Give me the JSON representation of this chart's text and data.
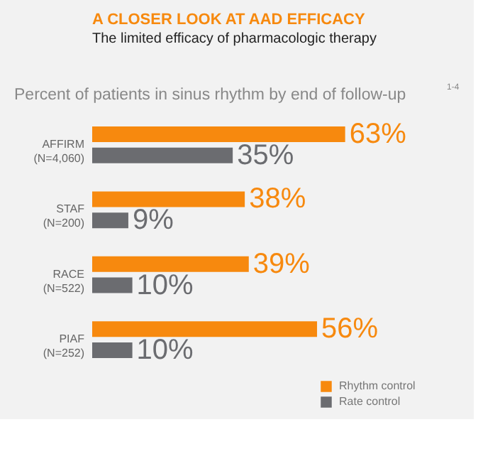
{
  "chart_data": {
    "type": "bar",
    "orientation": "horizontal",
    "title": "A CLOSER LOOK AT AAD EFFICACY",
    "subtitle": "The limited efficacy of pharmacologic therapy",
    "annotations": [
      "Percent of patients in sinus rhythm by end of follow-up",
      "1-4"
    ],
    "categories": [
      "AFFIRM\n(N=4,060)",
      "STAF\n(N=200)",
      "RACE\n(N=522)",
      "PIAF\n(N=252)"
    ],
    "series": [
      {
        "name": "Rhythm control",
        "color": "#f7890e",
        "values": [
          63,
          38,
          39,
          56
        ],
        "value_labels": [
          "63%",
          "38%",
          "39%",
          "56%"
        ]
      },
      {
        "name": "Rate control",
        "color": "#6b6c70",
        "values": [
          35,
          9,
          10,
          10
        ],
        "value_labels": [
          "35%",
          "9%",
          "10%",
          "10%"
        ]
      }
    ],
    "legend": "bottom right",
    "grid": false
  }
}
